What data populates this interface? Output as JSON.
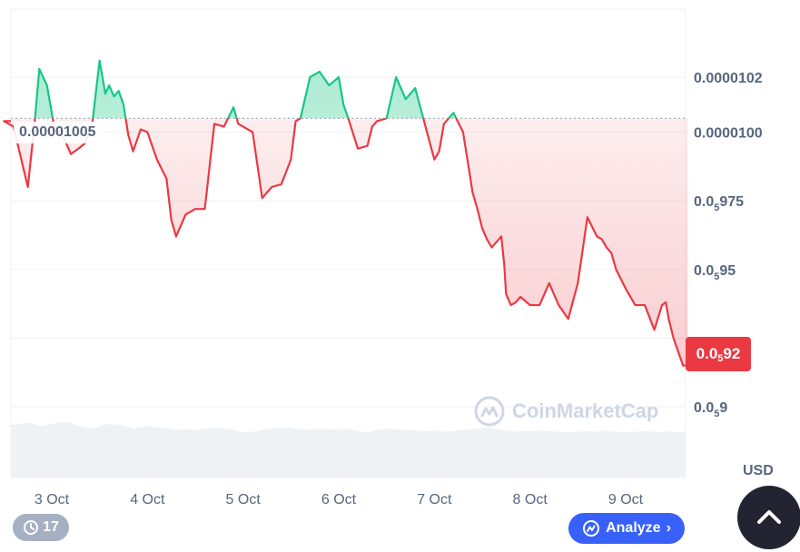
{
  "chart_data": {
    "type": "area",
    "currency": "USD",
    "reference_price_label": "0.00001005",
    "reference_price": 1.005e-05,
    "current_price_label": {
      "prefix": "0.0",
      "sub": "5",
      "suffix": "92"
    },
    "y_ticks": [
      {
        "value": 1.02e-05,
        "main": "0.0000102",
        "sub": "",
        "suffix": ""
      },
      {
        "value": 1e-05,
        "main": "0.0000100",
        "sub": "",
        "suffix": ""
      },
      {
        "value": 9.75e-06,
        "main": "0.0",
        "sub": "5",
        "suffix": "975"
      },
      {
        "value": 9.5e-06,
        "main": "0.0",
        "sub": "5",
        "suffix": "95"
      },
      {
        "value": 9e-06,
        "main": "0.0",
        "sub": "5",
        "suffix": "9"
      }
    ],
    "x_ticks": [
      "3 Oct",
      "4 Oct",
      "5 Oct",
      "6 Oct",
      "7 Oct",
      "8 Oct",
      "9 Oct"
    ],
    "ylim": [
      9e-06,
      1.04e-05
    ],
    "colors": {
      "up": "#16c784",
      "down": "#ea3943",
      "grid": "#eff2f5",
      "volume": "#eff2f5"
    },
    "series": [
      {
        "x_day": [
          2.5,
          2.6,
          2.75,
          2.82,
          2.87,
          2.95,
          3.03,
          3.1,
          3.2,
          3.28,
          3.35,
          3.42,
          3.5,
          3.56,
          3.6,
          3.65,
          3.7,
          3.75,
          3.8,
          3.85,
          3.93,
          4.0,
          4.1,
          4.2,
          4.25,
          4.3,
          4.4,
          4.5,
          4.6,
          4.7,
          4.8,
          4.9,
          4.95,
          5.0,
          5.1,
          5.2,
          5.3,
          5.4,
          5.5,
          5.55,
          5.6,
          5.7,
          5.8,
          5.9,
          6.0,
          6.05,
          6.1,
          6.2,
          6.3,
          6.35,
          6.4,
          6.5,
          6.6,
          6.7,
          6.8,
          6.9,
          7.0,
          7.05,
          7.1,
          7.2,
          7.3,
          7.4,
          7.45,
          7.5,
          7.55,
          7.6,
          7.7,
          7.73,
          7.75,
          7.8,
          7.85,
          7.9,
          8.0,
          8.1,
          8.2,
          8.3,
          8.4,
          8.5,
          8.6,
          8.7,
          8.75,
          8.8,
          8.85,
          8.9,
          9.0,
          9.1,
          9.2,
          9.3,
          9.38,
          9.42,
          9.45,
          9.5,
          9.55,
          9.6,
          9.65
        ],
        "price": [
          1.004e-05,
          1.002e-05,
          9.8e-06,
          1.003e-05,
          1.023e-05,
          1.017e-05,
          1.001e-05,
          1e-05,
          9.92e-06,
          9.94e-06,
          9.96e-06,
          1.002e-05,
          1.026e-05,
          1.014e-05,
          1.017e-05,
          1.013e-05,
          1.015e-05,
          1.01e-05,
          9.99e-06,
          9.93e-06,
          1.001e-05,
          1e-05,
          9.9e-06,
          9.83e-06,
          9.68e-06,
          9.62e-06,
          9.7e-06,
          9.72e-06,
          9.72e-06,
          1.003e-05,
          1.002e-05,
          1.009e-05,
          1.003e-05,
          1.002e-05,
          1e-05,
          9.76e-06,
          9.8e-06,
          9.81e-06,
          9.9e-06,
          1.004e-05,
          1.005e-05,
          1.02e-05,
          1.022e-05,
          1.017e-05,
          1.02e-05,
          1.01e-05,
          1.005e-05,
          9.94e-06,
          9.95e-06,
          1.002e-05,
          1.004e-05,
          1.005e-05,
          1.02e-05,
          1.012e-05,
          1.016e-05,
          1.003e-05,
          9.9e-06,
          9.93e-06,
          1.003e-05,
          1.007e-05,
          1e-05,
          9.78e-06,
          9.72e-06,
          9.65e-06,
          9.61e-06,
          9.58e-06,
          9.62e-06,
          9.52e-06,
          9.41e-06,
          9.37e-06,
          9.38e-06,
          9.4e-06,
          9.37e-06,
          9.37e-06,
          9.45e-06,
          9.37e-06,
          9.32e-06,
          9.45e-06,
          9.69e-06,
          9.62e-06,
          9.61e-06,
          9.58e-06,
          9.56e-06,
          9.5e-06,
          9.43e-06,
          9.37e-06,
          9.37e-06,
          9.28e-06,
          9.37e-06,
          9.38e-06,
          9.32e-06,
          9.25e-06,
          9.2e-06,
          9.15e-06,
          9.15e-06
        ],
        "volume": [
          0.8,
          0.82,
          0.85,
          0.83,
          0.8,
          0.82,
          0.84,
          0.86,
          0.85,
          0.8,
          0.78,
          0.76,
          0.79,
          0.82,
          0.84,
          0.81,
          0.83,
          0.8,
          0.79,
          0.76,
          0.78,
          0.8,
          0.78,
          0.77,
          0.76,
          0.74,
          0.75,
          0.74,
          0.76,
          0.77,
          0.76,
          0.74,
          0.72,
          0.7,
          0.71,
          0.74,
          0.76,
          0.77,
          0.78,
          0.76,
          0.75,
          0.74,
          0.76,
          0.75,
          0.74,
          0.76,
          0.75,
          0.72,
          0.7,
          0.72,
          0.74,
          0.76,
          0.75,
          0.74,
          0.73,
          0.72,
          0.73,
          0.72,
          0.71,
          0.72,
          0.74,
          0.75,
          0.76,
          0.77,
          0.78,
          0.76,
          0.74,
          0.73,
          0.73,
          0.72,
          0.71,
          0.72,
          0.72,
          0.73,
          0.72,
          0.71,
          0.7,
          0.71,
          0.72,
          0.71,
          0.72,
          0.73,
          0.72,
          0.71,
          0.7,
          0.71,
          0.72,
          0.71,
          0.7,
          0.71,
          0.72,
          0.71,
          0.7,
          0.71,
          0.72
        ]
      }
    ],
    "legend": "none",
    "grid": true
  },
  "ui": {
    "currency_label": "USD",
    "history_count": "17",
    "analyze_label": "Analyze",
    "watermark_text": "CoinMarketCap"
  }
}
